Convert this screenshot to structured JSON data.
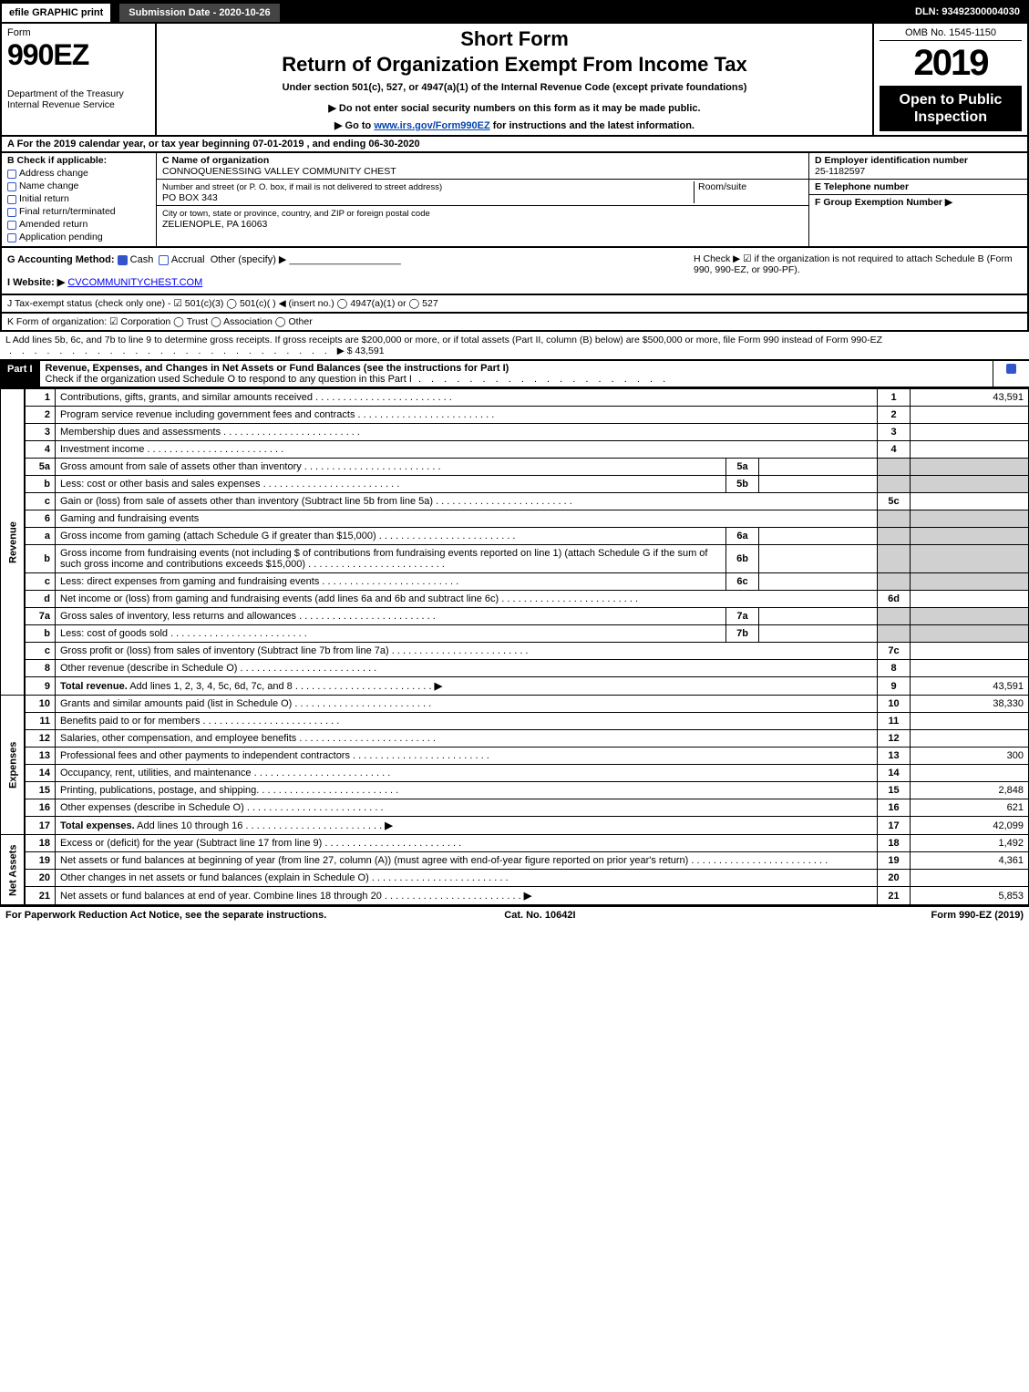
{
  "top": {
    "efile": "efile GRAPHIC print",
    "submission": "Submission Date - 2020-10-26",
    "dln": "DLN: 93492300004030"
  },
  "header": {
    "form_word": "Form",
    "form_num": "990EZ",
    "dept": "Department of the Treasury",
    "irs": "Internal Revenue Service",
    "short_form": "Short Form",
    "return_title": "Return of Organization Exempt From Income Tax",
    "under": "Under section 501(c), 527, or 4947(a)(1) of the Internal Revenue Code (except private foundations)",
    "warn": "▶ Do not enter social security numbers on this form as it may be made public.",
    "goto_pre": "▶ Go to ",
    "goto_link": "www.irs.gov/Form990EZ",
    "goto_post": " for instructions and the latest information.",
    "omb": "OMB No. 1545-1150",
    "year": "2019",
    "open": "Open to Public Inspection"
  },
  "cal": "A  For the 2019 calendar year, or tax year beginning 07-01-2019 , and ending 06-30-2020",
  "b": {
    "title": "B  Check if applicable:",
    "addr": "Address change",
    "name": "Name change",
    "initial": "Initial return",
    "final": "Final return/terminated",
    "amended": "Amended return",
    "pending": "Application pending"
  },
  "c": {
    "name_label": "C Name of organization",
    "name": "CONNOQUENESSING VALLEY COMMUNITY CHEST",
    "street_label": "Number and street (or P. O. box, if mail is not delivered to street address)",
    "street": "PO BOX 343",
    "room_label": "Room/suite",
    "city_label": "City or town, state or province, country, and ZIP or foreign postal code",
    "city": "ZELIENOPLE, PA  16063"
  },
  "d": {
    "label": "D Employer identification number",
    "value": "25-1182597"
  },
  "e": {
    "label": "E Telephone number",
    "value": ""
  },
  "f": {
    "label": "F Group Exemption Number  ▶",
    "value": ""
  },
  "g": {
    "label": "G Accounting Method:",
    "cash": "Cash",
    "accrual": "Accrual",
    "other": "Other (specify) ▶"
  },
  "h": {
    "text": "H  Check ▶  ☑  if the organization is not required to attach Schedule B (Form 990, 990-EZ, or 990-PF)."
  },
  "i": {
    "label": "I Website: ▶",
    "value": "CVCOMMUNITYCHEST.COM"
  },
  "j": "J Tax-exempt status (check only one) - ☑ 501(c)(3)  ◯ 501(c)( ) ◀ (insert no.)  ◯ 4947(a)(1) or  ◯ 527",
  "k": "K Form of organization:   ☑ Corporation   ◯ Trust   ◯ Association   ◯ Other",
  "l": {
    "text": "L Add lines 5b, 6c, and 7b to line 9 to determine gross receipts. If gross receipts are $200,000 or more, or if total assets (Part II, column (B) below) are $500,000 or more, file Form 990 instead of Form 990-EZ",
    "amount": "▶ $ 43,591"
  },
  "part1": {
    "label": "Part I",
    "title": "Revenue, Expenses, and Changes in Net Assets or Fund Balances (see the instructions for Part I)",
    "check_line": "Check if the organization used Schedule O to respond to any question in this Part I"
  },
  "sections": {
    "revenue": "Revenue",
    "expenses": "Expenses",
    "netassets": "Net Assets"
  },
  "rows": [
    {
      "n": "1",
      "d": "Contributions, gifts, grants, and similar amounts received",
      "r": "1",
      "a": "43,591"
    },
    {
      "n": "2",
      "d": "Program service revenue including government fees and contracts",
      "r": "2",
      "a": ""
    },
    {
      "n": "3",
      "d": "Membership dues and assessments",
      "r": "3",
      "a": ""
    },
    {
      "n": "4",
      "d": "Investment income",
      "r": "4",
      "a": ""
    },
    {
      "n": "5a",
      "d": "Gross amount from sale of assets other than inventory",
      "sub": "5a",
      "subv": ""
    },
    {
      "n": "b",
      "d": "Less: cost or other basis and sales expenses",
      "sub": "5b",
      "subv": ""
    },
    {
      "n": "c",
      "d": "Gain or (loss) from sale of assets other than inventory (Subtract line 5b from line 5a)",
      "r": "5c",
      "a": ""
    },
    {
      "n": "6",
      "d": "Gaming and fundraising events"
    },
    {
      "n": "a",
      "d": "Gross income from gaming (attach Schedule G if greater than $15,000)",
      "sub": "6a",
      "subv": ""
    },
    {
      "n": "b",
      "d": "Gross income from fundraising events (not including $                    of contributions from fundraising events reported on line 1) (attach Schedule G if the sum of such gross income and contributions exceeds $15,000)",
      "sub": "6b",
      "subv": ""
    },
    {
      "n": "c",
      "d": "Less: direct expenses from gaming and fundraising events",
      "sub": "6c",
      "subv": ""
    },
    {
      "n": "d",
      "d": "Net income or (loss) from gaming and fundraising events (add lines 6a and 6b and subtract line 6c)",
      "r": "6d",
      "a": ""
    },
    {
      "n": "7a",
      "d": "Gross sales of inventory, less returns and allowances",
      "sub": "7a",
      "subv": ""
    },
    {
      "n": "b",
      "d": "Less: cost of goods sold",
      "sub": "7b",
      "subv": ""
    },
    {
      "n": "c",
      "d": "Gross profit or (loss) from sales of inventory (Subtract line 7b from line 7a)",
      "r": "7c",
      "a": ""
    },
    {
      "n": "8",
      "d": "Other revenue (describe in Schedule O)",
      "r": "8",
      "a": ""
    },
    {
      "n": "9",
      "d": "Total revenue. Add lines 1, 2, 3, 4, 5c, 6d, 7c, and 8",
      "r": "9",
      "a": "43,591",
      "bold": true,
      "arrow": true
    }
  ],
  "exp_rows": [
    {
      "n": "10",
      "d": "Grants and similar amounts paid (list in Schedule O)",
      "r": "10",
      "a": "38,330"
    },
    {
      "n": "11",
      "d": "Benefits paid to or for members",
      "r": "11",
      "a": ""
    },
    {
      "n": "12",
      "d": "Salaries, other compensation, and employee benefits",
      "r": "12",
      "a": ""
    },
    {
      "n": "13",
      "d": "Professional fees and other payments to independent contractors",
      "r": "13",
      "a": "300"
    },
    {
      "n": "14",
      "d": "Occupancy, rent, utilities, and maintenance",
      "r": "14",
      "a": ""
    },
    {
      "n": "15",
      "d": "Printing, publications, postage, and shipping.",
      "r": "15",
      "a": "2,848"
    },
    {
      "n": "16",
      "d": "Other expenses (describe in Schedule O)",
      "r": "16",
      "a": "621"
    },
    {
      "n": "17",
      "d": "Total expenses. Add lines 10 through 16",
      "r": "17",
      "a": "42,099",
      "bold": true,
      "arrow": true
    }
  ],
  "na_rows": [
    {
      "n": "18",
      "d": "Excess or (deficit) for the year (Subtract line 17 from line 9)",
      "r": "18",
      "a": "1,492"
    },
    {
      "n": "19",
      "d": "Net assets or fund balances at beginning of year (from line 27, column (A)) (must agree with end-of-year figure reported on prior year's return)",
      "r": "19",
      "a": "4,361"
    },
    {
      "n": "20",
      "d": "Other changes in net assets or fund balances (explain in Schedule O)",
      "r": "20",
      "a": ""
    },
    {
      "n": "21",
      "d": "Net assets or fund balances at end of year. Combine lines 18 through 20",
      "r": "21",
      "a": "5,853",
      "arrow": true
    }
  ],
  "footer": {
    "left": "For Paperwork Reduction Act Notice, see the separate instructions.",
    "mid": "Cat. No. 10642I",
    "right": "Form 990-EZ (2019)"
  },
  "colors": {
    "black": "#000000",
    "white": "#ffffff",
    "shade": "#d0d0d0",
    "link": "#0645ad",
    "checkbox": "#3355cc"
  }
}
